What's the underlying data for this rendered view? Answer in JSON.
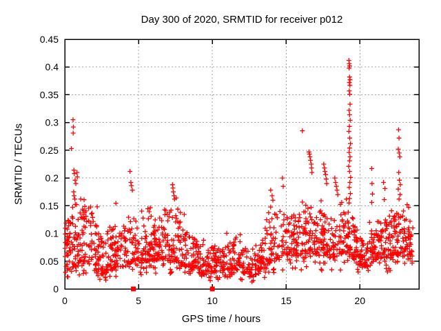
{
  "chart_data": {
    "type": "scatter",
    "title": "Day 300 of 2020, SRMTID for receiver p012",
    "xlabel": "GPS time / hours",
    "ylabel": "SRMTID / TECUs",
    "xlim": [
      0,
      24
    ],
    "ylim": [
      0,
      0.45
    ],
    "xticks": [
      [
        0,
        "0"
      ],
      [
        5,
        "5"
      ],
      [
        10,
        "10"
      ],
      [
        15,
        "15"
      ],
      [
        20,
        "20"
      ]
    ],
    "yticks": [
      [
        0,
        "0"
      ],
      [
        0.05,
        "0.05"
      ],
      [
        0.1,
        "0.1"
      ],
      [
        0.15,
        "0.15"
      ],
      [
        0.2,
        "0.2"
      ],
      [
        0.25,
        "0.25"
      ],
      [
        0.3,
        "0.3"
      ],
      [
        0.35,
        "0.35"
      ],
      [
        0.4,
        "0.4"
      ],
      [
        0.45,
        "0.45"
      ]
    ],
    "grid": {
      "show": true,
      "color": "#a0a0a0",
      "dash": [
        2,
        3
      ]
    },
    "frame_color": "#000000",
    "background": "#ffffff",
    "marker": {
      "shape": "plus",
      "color": "#ff0000",
      "size": 7,
      "stroke": 1.3
    },
    "legend": "none",
    "series": [
      {
        "name": "srmtid-scatter",
        "marker": "plus",
        "color": "#ff0000",
        "band": {
          "seed": 20300012,
          "points_per_hour": 68,
          "x_end": 23.6,
          "x_step": 0.045,
          "y_skew": 1.55,
          "below_prob": 0.09,
          "above_prob": 0.05,
          "above_range": 0.035,
          "envelope_nodes": [
            [
              0.0,
              0.03,
              0.125
            ],
            [
              0.3,
              0.035,
              0.13
            ],
            [
              0.6,
              0.04,
              0.15
            ],
            [
              1.0,
              0.04,
              0.145
            ],
            [
              1.5,
              0.048,
              0.145
            ],
            [
              1.8,
              0.05,
              0.15
            ],
            [
              2.2,
              0.032,
              0.115
            ],
            [
              2.6,
              0.025,
              0.09
            ],
            [
              3.0,
              0.03,
              0.1
            ],
            [
              3.5,
              0.04,
              0.125
            ],
            [
              4.0,
              0.04,
              0.11
            ],
            [
              4.5,
              0.045,
              0.125
            ],
            [
              5.0,
              0.042,
              0.115
            ],
            [
              5.5,
              0.05,
              0.135
            ],
            [
              6.0,
              0.05,
              0.115
            ],
            [
              6.6,
              0.055,
              0.15
            ],
            [
              7.0,
              0.05,
              0.14
            ],
            [
              7.5,
              0.05,
              0.135
            ],
            [
              8.0,
              0.042,
              0.115
            ],
            [
              8.5,
              0.04,
              0.1
            ],
            [
              9.0,
              0.032,
              0.085
            ],
            [
              9.5,
              0.025,
              0.075
            ],
            [
              10.0,
              0.028,
              0.08
            ],
            [
              10.5,
              0.03,
              0.075
            ],
            [
              11.0,
              0.035,
              0.09
            ],
            [
              11.5,
              0.035,
              0.085
            ],
            [
              12.0,
              0.03,
              0.075
            ],
            [
              12.6,
              0.02,
              0.06
            ],
            [
              13.0,
              0.025,
              0.065
            ],
            [
              13.5,
              0.035,
              0.095
            ],
            [
              14.0,
              0.05,
              0.13
            ],
            [
              14.5,
              0.055,
              0.14
            ],
            [
              15.0,
              0.058,
              0.13
            ],
            [
              15.5,
              0.058,
              0.125
            ],
            [
              16.0,
              0.06,
              0.135
            ],
            [
              16.6,
              0.065,
              0.145
            ],
            [
              17.0,
              0.06,
              0.14
            ],
            [
              17.5,
              0.06,
              0.135
            ],
            [
              18.0,
              0.055,
              0.125
            ],
            [
              18.5,
              0.06,
              0.13
            ],
            [
              19.0,
              0.065,
              0.145
            ],
            [
              19.4,
              0.06,
              0.14
            ],
            [
              19.8,
              0.045,
              0.1
            ],
            [
              20.2,
              0.038,
              0.085
            ],
            [
              20.6,
              0.04,
              0.095
            ],
            [
              21.0,
              0.05,
              0.105
            ],
            [
              21.5,
              0.055,
              0.115
            ],
            [
              22.0,
              0.055,
              0.125
            ],
            [
              22.5,
              0.06,
              0.135
            ],
            [
              23.0,
              0.058,
              0.13
            ],
            [
              23.6,
              0.048,
              0.11
            ]
          ]
        },
        "peak_points": [
          [
            0.45,
            0.253
          ],
          [
            0.56,
            0.305
          ],
          [
            0.58,
            0.292
          ],
          [
            0.57,
            0.281
          ],
          [
            0.62,
            0.214
          ],
          [
            0.65,
            0.208
          ],
          [
            0.7,
            0.196
          ],
          [
            0.75,
            0.19
          ],
          [
            0.6,
            0.175
          ],
          [
            0.63,
            0.168
          ],
          [
            0.68,
            0.162
          ],
          [
            0.83,
            0.21
          ],
          [
            0.85,
            0.202
          ],
          [
            0.8,
            0.152
          ],
          [
            2.2,
            0.148
          ],
          [
            4.42,
            0.212
          ],
          [
            4.48,
            0.192
          ],
          [
            4.52,
            0.186
          ],
          [
            4.58,
            0.178
          ],
          [
            7.3,
            0.188
          ],
          [
            7.33,
            0.182
          ],
          [
            7.36,
            0.175
          ],
          [
            7.4,
            0.168
          ],
          [
            7.44,
            0.162
          ],
          [
            13.95,
            0.178
          ],
          [
            14.05,
            0.168
          ],
          [
            14.1,
            0.16
          ],
          [
            14.75,
            0.2
          ],
          [
            14.8,
            0.185
          ],
          [
            16.1,
            0.285
          ],
          [
            16.55,
            0.247
          ],
          [
            16.58,
            0.243
          ],
          [
            16.62,
            0.238
          ],
          [
            16.65,
            0.232
          ],
          [
            16.7,
            0.225
          ],
          [
            16.72,
            0.218
          ],
          [
            16.75,
            0.21
          ],
          [
            17.55,
            0.225
          ],
          [
            17.6,
            0.218
          ],
          [
            17.63,
            0.212
          ],
          [
            17.68,
            0.206
          ],
          [
            17.72,
            0.198
          ],
          [
            17.75,
            0.19
          ],
          [
            18.3,
            0.2
          ],
          [
            18.35,
            0.192
          ],
          [
            18.4,
            0.185
          ],
          [
            18.45,
            0.178
          ],
          [
            18.5,
            0.17
          ],
          [
            19.25,
            0.412
          ],
          [
            19.28,
            0.406
          ],
          [
            19.3,
            0.402
          ],
          [
            19.27,
            0.398
          ],
          [
            19.3,
            0.382
          ],
          [
            19.33,
            0.377
          ],
          [
            19.29,
            0.372
          ],
          [
            19.32,
            0.367
          ],
          [
            19.28,
            0.357
          ],
          [
            19.31,
            0.351
          ],
          [
            19.33,
            0.333
          ],
          [
            19.27,
            0.322
          ],
          [
            19.3,
            0.314
          ],
          [
            19.34,
            0.304
          ],
          [
            19.29,
            0.293
          ],
          [
            19.25,
            0.284
          ],
          [
            19.31,
            0.272
          ],
          [
            19.36,
            0.262
          ],
          [
            19.3,
            0.254
          ],
          [
            19.27,
            0.246
          ],
          [
            19.33,
            0.238
          ],
          [
            19.3,
            0.231
          ],
          [
            19.24,
            0.221
          ],
          [
            19.3,
            0.212
          ],
          [
            19.37,
            0.201
          ],
          [
            19.32,
            0.192
          ],
          [
            19.28,
            0.183
          ],
          [
            19.35,
            0.172
          ],
          [
            19.3,
            0.163
          ],
          [
            19.26,
            0.155
          ],
          [
            20.8,
            0.217
          ],
          [
            20.82,
            0.19
          ],
          [
            20.85,
            0.171
          ],
          [
            20.8,
            0.156
          ],
          [
            21.6,
            0.192
          ],
          [
            21.7,
            0.181
          ],
          [
            21.65,
            0.161
          ],
          [
            22.62,
            0.287
          ],
          [
            22.65,
            0.272
          ],
          [
            22.6,
            0.252
          ],
          [
            22.66,
            0.245
          ],
          [
            22.7,
            0.238
          ],
          [
            22.63,
            0.21
          ],
          [
            22.68,
            0.196
          ],
          [
            22.74,
            0.188
          ],
          [
            22.6,
            0.18
          ],
          [
            22.72,
            0.17
          ],
          [
            22.65,
            0.162
          ],
          [
            23.2,
            0.152
          ],
          [
            23.3,
            0.147
          ]
        ]
      },
      {
        "name": "axis-flags",
        "marker": "filled-square",
        "color": "#ff0000",
        "size": 7,
        "points": [
          [
            4.65,
            0
          ],
          [
            10.0,
            0
          ]
        ]
      }
    ]
  }
}
